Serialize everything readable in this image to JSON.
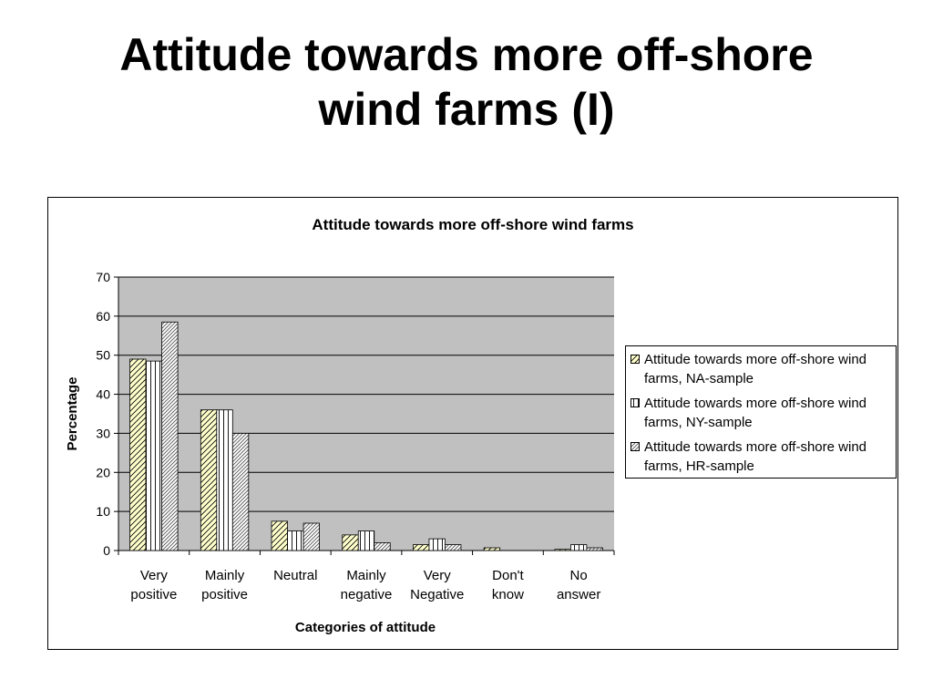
{
  "slide": {
    "title_line1": "Attitude towards more off-shore",
    "title_line2": "wind farms (I)"
  },
  "chart_data": {
    "type": "bar",
    "title": "Attitude towards more off-shore wind farms",
    "xlabel": "Categories of attitude",
    "ylabel": "Percentage",
    "ylim": [
      0,
      70
    ],
    "yticks": [
      0,
      10,
      20,
      30,
      40,
      50,
      60,
      70
    ],
    "grid": true,
    "legend_position": "right",
    "categories": [
      [
        "Very",
        "positive"
      ],
      [
        "Mainly",
        "positive"
      ],
      [
        "Neutral"
      ],
      [
        "Mainly",
        "negative"
      ],
      [
        "Very",
        "Negative"
      ],
      [
        "Don't",
        "know"
      ],
      [
        "No",
        "answer"
      ]
    ],
    "series": [
      {
        "name": "Attitude towards more off-shore wind farms, NA-sample",
        "name_lines": [
          "Attitude towards more off-shore wind",
          "farms, NA-sample"
        ],
        "pattern": "diagonal",
        "fill_color": "#ffffcc",
        "values": [
          49,
          36,
          7.5,
          4,
          1.5,
          0.7,
          0.3
        ]
      },
      {
        "name": "Attitude towards more off-shore wind farms, NY-sample",
        "name_lines": [
          "Attitude towards more off-shore wind",
          "farms, NY-sample"
        ],
        "pattern": "vertical",
        "fill_color": "#ffffff",
        "values": [
          48.5,
          36,
          5,
          5,
          3,
          0,
          1.5
        ]
      },
      {
        "name": "Attitude towards more off-shore wind farms, HR-sample",
        "name_lines": [
          "Attitude towards more off-shore wind",
          "farms, HR-sample"
        ],
        "pattern": "dense-diagonal",
        "fill_color": "#ffffff",
        "values": [
          58.5,
          30,
          7,
          2,
          1.5,
          0,
          0.7
        ]
      }
    ],
    "colors": {
      "plot_background": "#c0c0c0",
      "gridline": "#000000",
      "bar_outline": "#000000"
    }
  }
}
